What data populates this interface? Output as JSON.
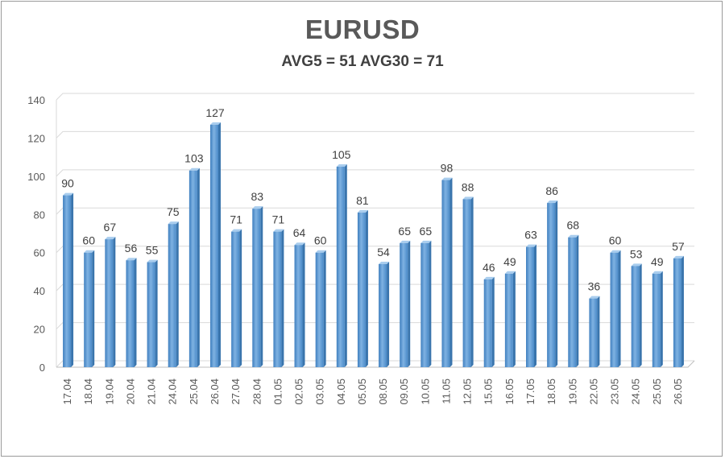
{
  "chart_data": {
    "type": "bar",
    "title": "EURUSD",
    "subtitle": "AVG5 = 51 AVG30 = 71",
    "categories": [
      "17.04",
      "18.04",
      "19.04",
      "20.04",
      "21.04",
      "24.04",
      "25.04",
      "26.04",
      "27.04",
      "28.04",
      "01.05",
      "02.05",
      "03.05",
      "04.05",
      "05.05",
      "08.05",
      "09.05",
      "10.05",
      "11.05",
      "12.05",
      "15.05",
      "16.05",
      "17.05",
      "18.05",
      "19.05",
      "22.05",
      "23.05",
      "24.05",
      "25.05",
      "26.05"
    ],
    "values": [
      90,
      60,
      67,
      56,
      55,
      75,
      103,
      127,
      71,
      83,
      71,
      64,
      60,
      105,
      81,
      54,
      65,
      65,
      98,
      88,
      46,
      49,
      63,
      86,
      68,
      36,
      60,
      53,
      49,
      57
    ],
    "ylim": [
      0,
      140
    ],
    "yticks": [
      0,
      20,
      40,
      60,
      80,
      100,
      120,
      140
    ],
    "xlabel": "",
    "ylabel": "",
    "grid": true,
    "colors": {
      "bar_front": "#5b9bd5",
      "bar_light": "#9dc3e6",
      "bar_side": "#3a75ad",
      "bar_top": "#a9cdee",
      "grid": "#d9d9d9"
    }
  }
}
